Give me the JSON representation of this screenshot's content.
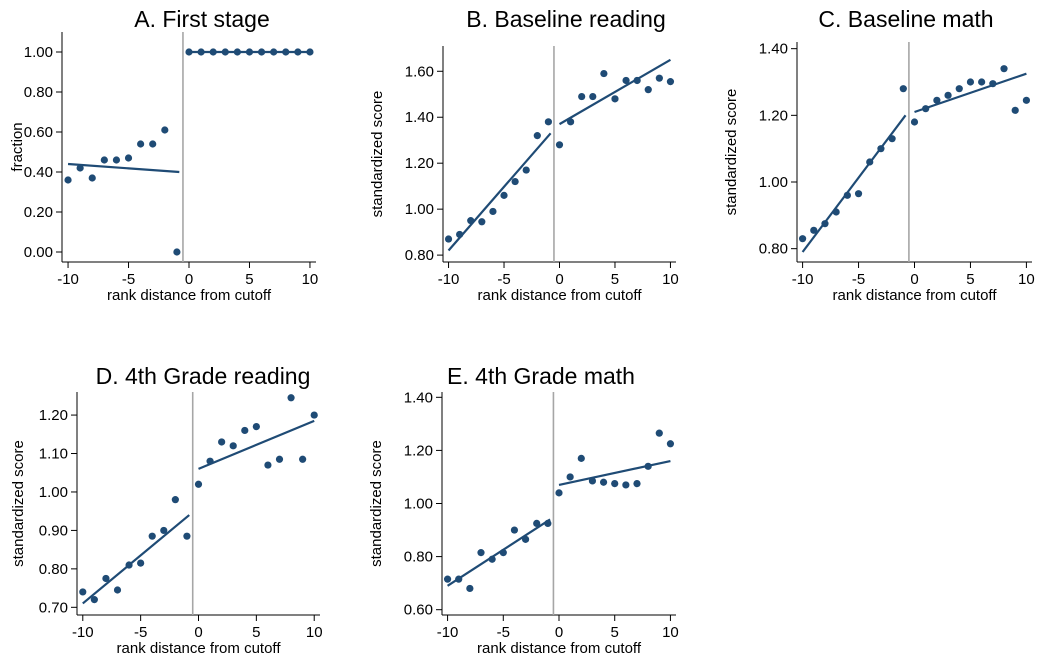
{
  "chart_data": [
    {
      "type": "scatter",
      "title": "A. First stage",
      "xlabel": "rank distance from cutoff",
      "ylabel": "fraction",
      "xlim": [
        -10.5,
        10.5
      ],
      "ylim": [
        -0.05,
        1.1
      ],
      "xticks": [
        -10,
        -5,
        0,
        5,
        10
      ],
      "xtick_labels": [
        "-10",
        "-5",
        "0",
        "5",
        "10"
      ],
      "yticks": [
        0,
        0.2,
        0.4,
        0.6,
        0.8,
        1.0
      ],
      "ytick_labels": [
        "0.00",
        "0.20",
        "0.40",
        "0.60",
        "0.80",
        "1.00"
      ],
      "cutoff": -0.5,
      "x": [
        -10,
        -9,
        -8,
        -7,
        -6,
        -5,
        -4,
        -3,
        -2,
        -1,
        0,
        1,
        2,
        3,
        4,
        5,
        6,
        7,
        8,
        9,
        10
      ],
      "y": [
        0.36,
        0.42,
        0.37,
        0.46,
        0.46,
        0.47,
        0.54,
        0.54,
        0.61,
        0.0,
        1.0,
        1.0,
        1.0,
        1.0,
        1.0,
        1.0,
        1.0,
        1.0,
        1.0,
        1.0,
        1.0
      ],
      "fit_lines": [
        {
          "x": [
            -10,
            -0.8
          ],
          "y": [
            0.44,
            0.4
          ]
        },
        {
          "x": [
            -0.2,
            10
          ],
          "y": [
            1.0,
            1.0
          ]
        }
      ]
    },
    {
      "type": "scatter",
      "title": "B. Baseline reading",
      "xlabel": "rank distance from cutoff",
      "ylabel": "standardized score",
      "xlim": [
        -10.5,
        10.5
      ],
      "ylim": [
        0.77,
        1.71
      ],
      "xticks": [
        -10,
        -5,
        0,
        5,
        10
      ],
      "xtick_labels": [
        "-10",
        "-5",
        "0",
        "5",
        "10"
      ],
      "yticks": [
        0.8,
        1.0,
        1.2,
        1.4,
        1.6
      ],
      "ytick_labels": [
        "0.80",
        "1.00",
        "1.20",
        "1.40",
        "1.60"
      ],
      "cutoff": -0.5,
      "x": [
        -10,
        -9,
        -8,
        -7,
        -6,
        -5,
        -4,
        -3,
        -2,
        -1,
        0,
        1,
        2,
        3,
        4,
        5,
        6,
        7,
        8,
        9,
        10
      ],
      "y": [
        0.87,
        0.89,
        0.95,
        0.945,
        0.99,
        1.06,
        1.12,
        1.17,
        1.32,
        1.38,
        1.28,
        1.38,
        1.49,
        1.49,
        1.59,
        1.48,
        1.56,
        1.56,
        1.52,
        1.57,
        1.555
      ],
      "fit_lines": [
        {
          "x": [
            -10,
            -0.8
          ],
          "y": [
            0.82,
            1.33
          ]
        },
        {
          "x": [
            0,
            10
          ],
          "y": [
            1.37,
            1.65
          ]
        }
      ]
    },
    {
      "type": "scatter",
      "title": "C. Baseline math",
      "xlabel": "rank distance from cutoff",
      "ylabel": "standardized score",
      "xlim": [
        -10.5,
        10.5
      ],
      "ylim": [
        0.76,
        1.42
      ],
      "xticks": [
        -10,
        -5,
        0,
        5,
        10
      ],
      "xtick_labels": [
        "-10",
        "-5",
        "0",
        "5",
        "10"
      ],
      "yticks": [
        0.8,
        1.0,
        1.2,
        1.4
      ],
      "ytick_labels": [
        "0.80",
        "1.00",
        "1.20",
        "1.40"
      ],
      "cutoff": -0.5,
      "x": [
        -10,
        -9,
        -8,
        -7,
        -6,
        -5,
        -4,
        -3,
        -2,
        -1,
        0,
        1,
        2,
        3,
        4,
        5,
        6,
        7,
        8,
        9,
        10
      ],
      "y": [
        0.83,
        0.855,
        0.875,
        0.91,
        0.96,
        0.965,
        1.06,
        1.1,
        1.13,
        1.28,
        1.18,
        1.22,
        1.245,
        1.26,
        1.28,
        1.3,
        1.3,
        1.295,
        1.34,
        1.215,
        1.245
      ],
      "fit_lines": [
        {
          "x": [
            -10,
            -0.8
          ],
          "y": [
            0.79,
            1.2
          ]
        },
        {
          "x": [
            0,
            10
          ],
          "y": [
            1.21,
            1.325
          ]
        }
      ]
    },
    {
      "type": "scatter",
      "title": "D. 4th Grade reading",
      "xlabel": "rank distance from cutoff",
      "ylabel": "standardized score",
      "xlim": [
        -10.5,
        10.5
      ],
      "ylim": [
        0.68,
        1.26
      ],
      "xticks": [
        -10,
        -5,
        0,
        5,
        10
      ],
      "xtick_labels": [
        "-10",
        "-5",
        "0",
        "5",
        "10"
      ],
      "yticks": [
        0.7,
        0.8,
        0.9,
        1.0,
        1.1,
        1.2
      ],
      "ytick_labels": [
        "0.70",
        "0.80",
        "0.90",
        "1.00",
        "1.10",
        "1.20"
      ],
      "cutoff": -0.5,
      "x": [
        -10,
        -9,
        -8,
        -7,
        -6,
        -5,
        -4,
        -3,
        -2,
        -1,
        0,
        1,
        2,
        3,
        4,
        5,
        6,
        7,
        8,
        9,
        10
      ],
      "y": [
        0.74,
        0.72,
        0.775,
        0.745,
        0.81,
        0.815,
        0.885,
        0.9,
        0.98,
        0.885,
        1.02,
        1.08,
        1.13,
        1.12,
        1.16,
        1.17,
        1.07,
        1.085,
        1.245,
        1.085,
        1.2
      ],
      "fit_lines": [
        {
          "x": [
            -10,
            -0.8
          ],
          "y": [
            0.71,
            0.94
          ]
        },
        {
          "x": [
            0,
            10
          ],
          "y": [
            1.06,
            1.185
          ]
        }
      ]
    },
    {
      "type": "scatter",
      "title": "E. 4th Grade math",
      "xlabel": "rank distance from cutoff",
      "ylabel": "standardized score",
      "xlim": [
        -10.5,
        10.5
      ],
      "ylim": [
        0.58,
        1.42
      ],
      "xticks": [
        -10,
        -5,
        0,
        5,
        10
      ],
      "xtick_labels": [
        "-10",
        "-5",
        "0",
        "5",
        "10"
      ],
      "yticks": [
        0.6,
        0.8,
        1.0,
        1.2,
        1.4
      ],
      "ytick_labels": [
        "0.60",
        "0.80",
        "1.00",
        "1.20",
        "1.40"
      ],
      "cutoff": -0.5,
      "x": [
        -10,
        -9,
        -8,
        -7,
        -6,
        -5,
        -4,
        -3,
        -2,
        -1,
        0,
        1,
        2,
        3,
        4,
        5,
        6,
        7,
        8,
        9,
        10
      ],
      "y": [
        0.715,
        0.715,
        0.68,
        0.815,
        0.79,
        0.815,
        0.9,
        0.865,
        0.925,
        0.925,
        1.04,
        1.1,
        1.17,
        1.085,
        1.08,
        1.075,
        1.07,
        1.075,
        1.14,
        1.265,
        1.225
      ],
      "fit_lines": [
        {
          "x": [
            -10,
            -0.8
          ],
          "y": [
            0.69,
            0.94
          ]
        },
        {
          "x": [
            0,
            10
          ],
          "y": [
            1.07,
            1.16
          ]
        }
      ]
    }
  ],
  "colors": {
    "marker": "#1f4b75",
    "fit_line": "#1f4b75",
    "cutoff_line": "#a6a6a6",
    "axis": "#000000"
  }
}
